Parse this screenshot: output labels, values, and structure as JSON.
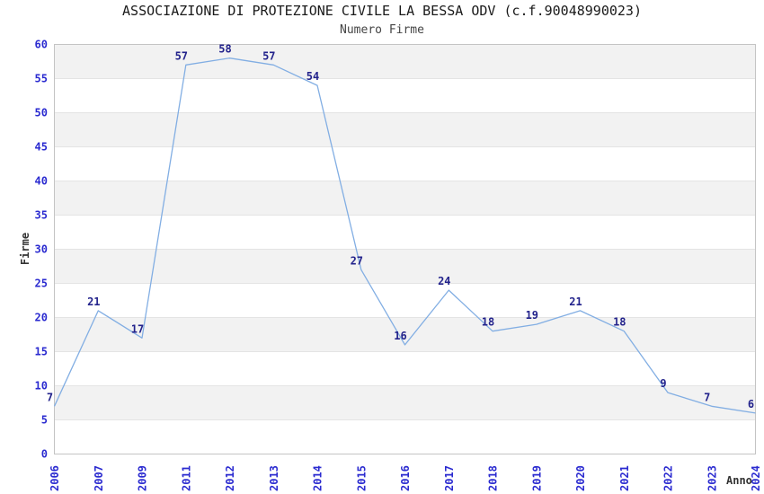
{
  "header": {
    "title": "ASSOCIAZIONE DI PROTEZIONE CIVILE LA BESSA ODV (c.f.90048990023)",
    "subtitle": "Numero Firme"
  },
  "chart_data": {
    "type": "line",
    "title": "ASSOCIAZIONE DI PROTEZIONE CIVILE LA BESSA ODV (c.f.90048990023)",
    "subtitle": "Numero Firme",
    "categories": [
      "2006",
      "2007",
      "2009",
      "2011",
      "2012",
      "2013",
      "2014",
      "2015",
      "2016",
      "2017",
      "2018",
      "2019",
      "2020",
      "2021",
      "2022",
      "2023",
      "2024"
    ],
    "values": [
      7,
      21,
      17,
      57,
      58,
      57,
      54,
      27,
      16,
      24,
      18,
      19,
      21,
      18,
      9,
      7,
      6
    ],
    "point_labels": [
      "7",
      "21",
      "17",
      "57",
      "58",
      "57",
      "54",
      "27",
      "16",
      "24",
      "18",
      "19",
      "21",
      "18",
      "9",
      "7",
      "6"
    ],
    "xlabel": "Anno",
    "ylabel": "Firme",
    "ylim": [
      0,
      60
    ],
    "y_tick_step": 5,
    "y_ticks": [
      0,
      5,
      10,
      15,
      20,
      25,
      30,
      35,
      40,
      45,
      50,
      55,
      60
    ],
    "grid": "horizontal gridlines with alternating shaded bands",
    "legend_position": "none",
    "colors": {
      "line": "#82aee3",
      "axis_tick_label": "#2b2bd0",
      "point_label": "#23238c",
      "band_fill": "#f2f2f2",
      "grid_line": "#e4e4e4",
      "plot_border": "#c4c4c4",
      "title_text": "#1a1a1a",
      "subtitle_text": "#444444",
      "axis_title_text": "#333333",
      "background": "#ffffff"
    }
  }
}
